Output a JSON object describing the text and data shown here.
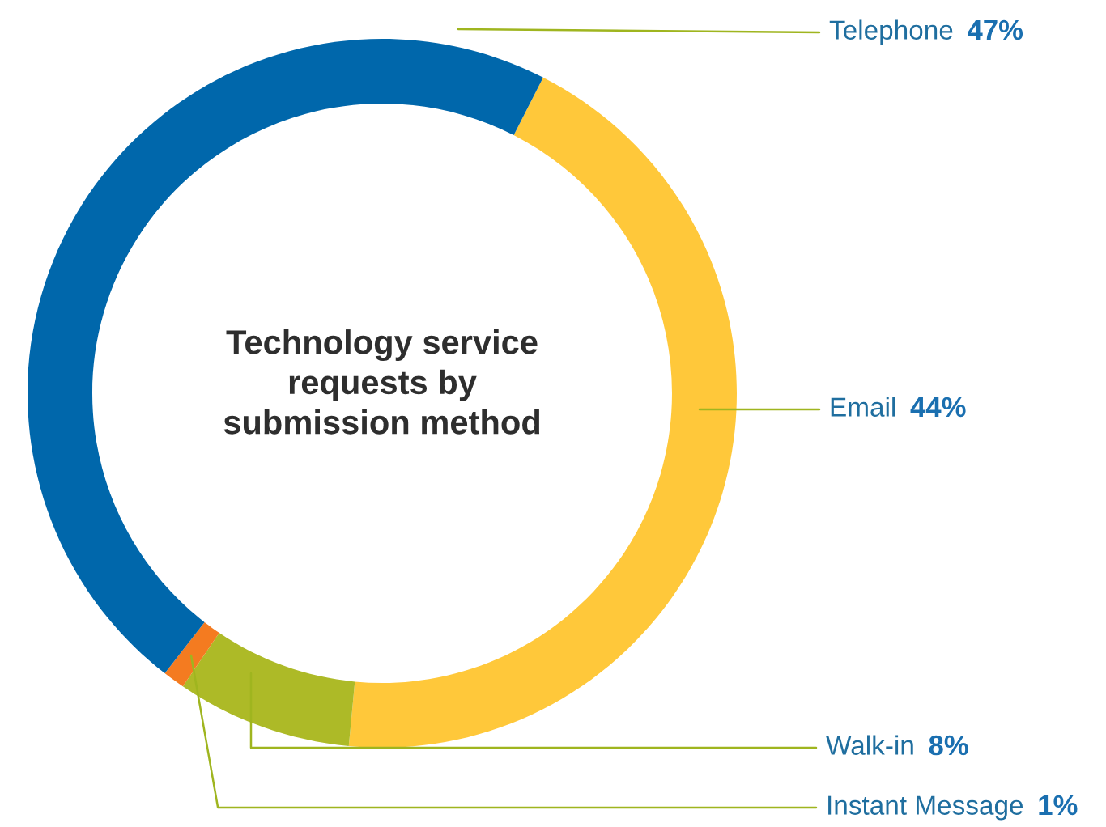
{
  "chart_data": {
    "type": "donut",
    "title": "Technology service\nrequests by\nsubmission method",
    "categories": [
      "Telephone",
      "Email",
      "Walk-in",
      "Instant Message"
    ],
    "values": [
      47,
      44,
      8,
      1
    ],
    "value_labels": [
      "47%",
      "44%",
      "8%",
      "1%"
    ],
    "colors": [
      "#0067ab",
      "#ffc83a",
      "#adba27",
      "#f47b20"
    ],
    "legend": false
  }
}
